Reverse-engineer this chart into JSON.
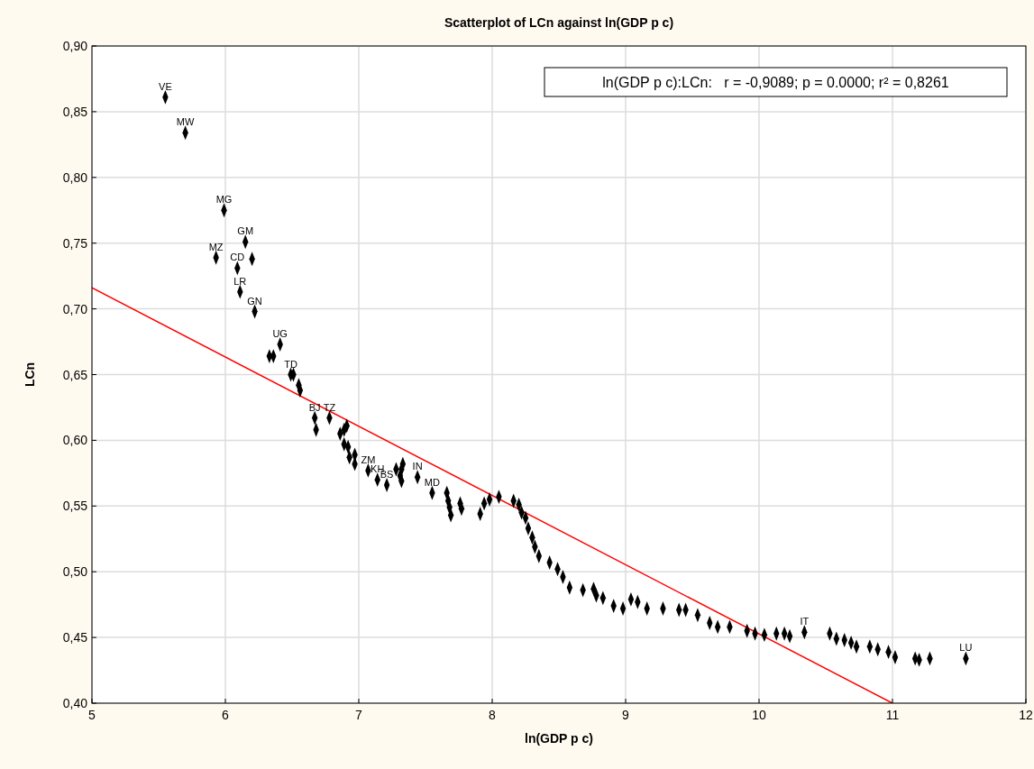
{
  "chart_data": {
    "type": "scatter",
    "title": "Scatterplot of LCn against ln(GDP p c)",
    "xlabel": "ln(GDP p c)",
    "ylabel": "LCn",
    "xlim": [
      5,
      12
    ],
    "xticks": [
      5,
      6,
      7,
      8,
      9,
      10,
      11,
      12
    ],
    "ylim": [
      0.4,
      0.9
    ],
    "yticks": [
      {
        "value": 0.4,
        "label": "0,40"
      },
      {
        "value": 0.45,
        "label": "0,45"
      },
      {
        "value": 0.5,
        "label": "0,50"
      },
      {
        "value": 0.55,
        "label": "0,55"
      },
      {
        "value": 0.6,
        "label": "0,60"
      },
      {
        "value": 0.65,
        "label": "0,65"
      },
      {
        "value": 0.7,
        "label": "0,70"
      },
      {
        "value": 0.75,
        "label": "0,75"
      },
      {
        "value": 0.8,
        "label": "0,80"
      },
      {
        "value": 0.85,
        "label": "0,85"
      },
      {
        "value": 0.9,
        "label": "0,90"
      }
    ],
    "grid": true,
    "annotations": [
      "ln(GDP p c):LCn:   r = -0,9089; p = 0.0000; r² = 0,8261"
    ],
    "series": [
      {
        "color": "#000000",
        "marker": "diamond",
        "x": [
          5.55,
          5.7,
          5.99,
          6.15,
          6.2,
          5.93,
          6.09,
          6.11,
          6.22,
          6.41,
          6.33,
          6.36,
          6.49,
          6.51,
          6.55,
          6.56,
          6.67,
          6.68,
          6.78,
          6.86,
          6.89,
          6.91,
          6.89,
          6.92,
          6.93,
          6.97,
          6.97,
          7.07,
          7.14,
          7.21,
          7.28,
          7.32,
          7.33,
          7.31,
          7.32,
          7.44,
          7.55,
          7.66,
          7.67,
          7.68,
          7.69,
          7.76,
          7.77,
          7.91,
          7.94,
          7.98,
          8.05,
          8.16,
          8.2,
          8.22,
          8.25,
          8.27,
          8.3,
          8.32,
          8.35,
          8.43,
          8.49,
          8.53,
          8.58,
          8.68,
          8.76,
          8.78,
          8.83,
          8.91,
          8.98,
          9.04,
          9.09,
          9.16,
          9.28,
          9.4,
          9.45,
          9.54,
          9.63,
          9.69,
          9.78,
          9.91,
          9.97,
          10.04,
          10.13,
          10.19,
          10.23,
          10.34,
          10.53,
          10.58,
          10.64,
          10.69,
          10.73,
          10.83,
          10.89,
          10.97,
          11.02,
          11.17,
          11.2,
          11.28,
          11.55
        ],
        "values": [
          0.861,
          0.834,
          0.775,
          0.751,
          0.738,
          0.739,
          0.731,
          0.713,
          0.698,
          0.673,
          0.664,
          0.664,
          0.65,
          0.65,
          0.642,
          0.638,
          0.617,
          0.608,
          0.617,
          0.605,
          0.608,
          0.611,
          0.597,
          0.595,
          0.587,
          0.582,
          0.589,
          0.577,
          0.57,
          0.566,
          0.578,
          0.578,
          0.582,
          0.573,
          0.569,
          0.572,
          0.56,
          0.56,
          0.554,
          0.549,
          0.543,
          0.552,
          0.548,
          0.544,
          0.552,
          0.555,
          0.557,
          0.554,
          0.551,
          0.545,
          0.541,
          0.533,
          0.526,
          0.519,
          0.512,
          0.507,
          0.502,
          0.496,
          0.488,
          0.486,
          0.487,
          0.482,
          0.48,
          0.474,
          0.472,
          0.479,
          0.477,
          0.472,
          0.472,
          0.471,
          0.471,
          0.467,
          0.461,
          0.458,
          0.458,
          0.455,
          0.453,
          0.452,
          0.453,
          0.453,
          0.451,
          0.454,
          0.453,
          0.449,
          0.448,
          0.446,
          0.443,
          0.443,
          0.441,
          0.439,
          0.435,
          0.434,
          0.433,
          0.434,
          0.434
        ],
        "value_labels": [
          "VE",
          "MW",
          "MG",
          "GM",
          null,
          "MZ",
          "CD",
          "LR",
          "GN",
          "UG",
          null,
          null,
          "TD",
          null,
          null,
          null,
          "BJ",
          null,
          "TZ",
          null,
          null,
          null,
          null,
          null,
          null,
          null,
          null,
          "ZM",
          "KH",
          "BS",
          null,
          null,
          null,
          null,
          null,
          "IN",
          "MD",
          null,
          null,
          null,
          null,
          null,
          null,
          null,
          null,
          null,
          null,
          null,
          null,
          null,
          null,
          null,
          null,
          null,
          null,
          null,
          null,
          null,
          null,
          null,
          null,
          null,
          null,
          null,
          null,
          null,
          null,
          null,
          null,
          null,
          null,
          null,
          null,
          null,
          null,
          null,
          null,
          null,
          null,
          null,
          null,
          "IT",
          null,
          null,
          null,
          null,
          null,
          null,
          null,
          null,
          null,
          null,
          null,
          null,
          "LU"
        ]
      },
      {
        "type": "line",
        "color": "#ff0000",
        "x": [
          5,
          11
        ],
        "values": [
          0.716,
          0.4
        ]
      }
    ]
  }
}
